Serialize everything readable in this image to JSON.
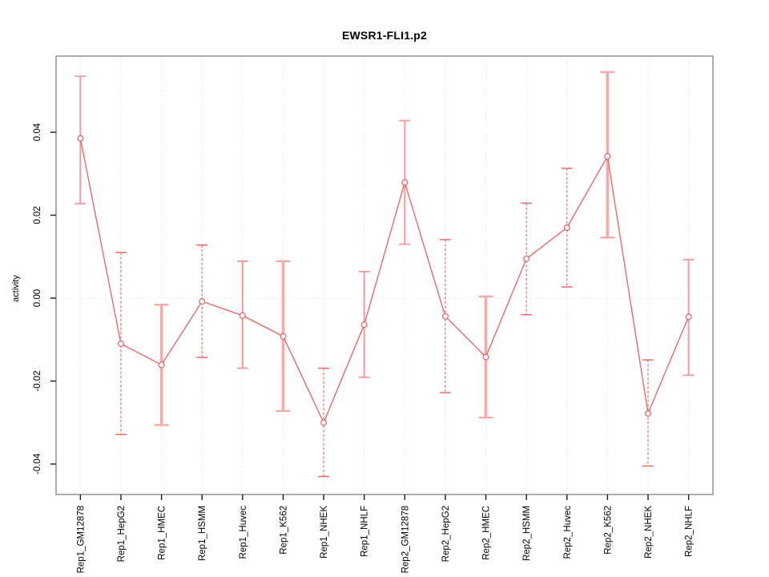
{
  "window": {
    "background": "#ffffff"
  },
  "chart_data": {
    "type": "line",
    "title": "EWSR1-FLI1.p2",
    "xlabel": "",
    "ylabel": "activity",
    "categories": [
      "Rep1_GM12878",
      "Rep1_HepG2",
      "Rep1_HMEC",
      "Rep1_HSMM",
      "Rep1_Huvec",
      "Rep1_K562",
      "Rep1_NHEK",
      "Rep1_NHLF",
      "Rep2_GM12878",
      "Rep2_HepG2",
      "Rep2_HMEC",
      "Rep2_HSMM",
      "Rep2_Huvec",
      "Rep2_K562",
      "Rep2_NHEK",
      "Rep2_NHLF"
    ],
    "series": [
      {
        "name": "activity",
        "values": [
          0.0385,
          -0.011,
          -0.0161,
          -0.0008,
          -0.0042,
          -0.0092,
          -0.03,
          -0.0064,
          0.0279,
          -0.0044,
          -0.0142,
          0.0095,
          0.017,
          0.0342,
          -0.0278,
          -0.0045
        ],
        "error_high": [
          0.0535,
          0.011,
          -0.0016,
          0.0128,
          0.0089,
          0.0089,
          -0.0169,
          0.0064,
          0.0428,
          0.0141,
          0.0004,
          0.0229,
          0.0313,
          0.0545,
          -0.0149,
          0.0093
        ],
        "error_low": [
          0.0228,
          -0.0329,
          -0.0306,
          -0.0143,
          -0.0169,
          -0.0272,
          -0.043,
          -0.0191,
          0.013,
          -0.0228,
          -0.0288,
          -0.004,
          0.0027,
          0.0146,
          -0.0405,
          -0.0186
        ],
        "bar_styles": [
          "solid-thin",
          "dashed-thin",
          "solid-thick",
          "dashed-thin",
          "solid-thin",
          "solid-thick",
          "dashed-thin",
          "solid-thin",
          "solid-thin",
          "dashed-thin",
          "solid-thick",
          "dashed-thin",
          "dashed-thin",
          "solid-thick",
          "dashed-thin",
          "solid-thin"
        ]
      }
    ],
    "y_ticks": [
      -0.04,
      -0.02,
      0.0,
      0.02,
      0.04
    ],
    "y_tick_labels": [
      "-0.04",
      "-0.02",
      "0.00",
      "0.02",
      "0.04"
    ],
    "ylim": [
      -0.04734,
      0.05836
    ],
    "grid": "vertical dotted gridline at every category; dotted horizontal line at y=0",
    "legend": "none",
    "marker": "open-circle",
    "colors": {
      "series_line": "#ec5f5f",
      "marker_stroke": "#ec5f5f",
      "error_solid_thin": "#f49a9a",
      "error_solid_thick": "#f6abab",
      "error_dashed": "#ed6b6b",
      "gridline": "#d9d9d9",
      "zero_line": "#dcdcdc",
      "frame": "#8c8c8c",
      "tick": "#1a1a1a",
      "text": "#000000"
    }
  }
}
